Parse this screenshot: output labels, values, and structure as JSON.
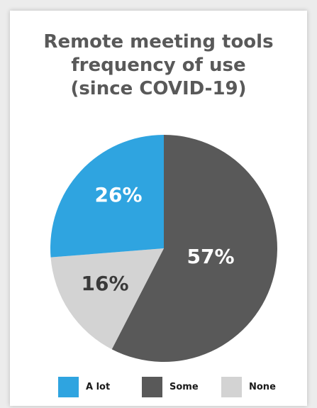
{
  "chart_data": {
    "type": "pie",
    "title_lines": [
      "Remote meeting tools",
      "frequency of use",
      "(since COVID-19)"
    ],
    "categories": [
      "A lot",
      "Some",
      "None"
    ],
    "values": [
      26,
      57,
      16
    ],
    "labels": [
      "26%",
      "57%",
      "16%"
    ],
    "colors": [
      "#2fa4e0",
      "#595959",
      "#d3d3d3"
    ],
    "label_colors": [
      "#ffffff",
      "#ffffff",
      "#3a3a3a"
    ],
    "legend_position": "bottom"
  }
}
